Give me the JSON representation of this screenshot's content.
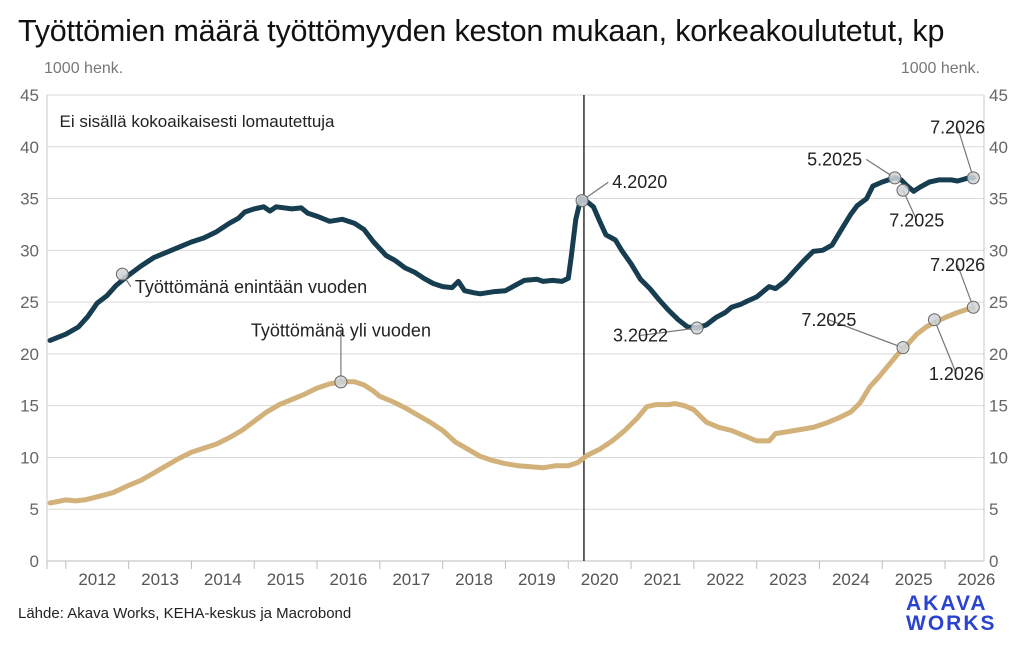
{
  "title": "Työttömien määrä työttömyyden keston mukaan, korkeakoulutetut, kp",
  "unit_left": "1000 henk.",
  "unit_right": "1000 henk.",
  "source": "Lähde: Akava Works, KEHA-keskus ja Macrobond",
  "logo": {
    "line1": "AKAVA",
    "line2": "WORKS",
    "color": "#2a44d0"
  },
  "chart_data": {
    "type": "line",
    "ylim": [
      0,
      45
    ],
    "yticks": [
      0,
      5,
      10,
      15,
      20,
      25,
      30,
      35,
      40,
      45
    ],
    "xlim": [
      2011.7,
      2026.62
    ],
    "year_labels": [
      "2012",
      "2013",
      "2014",
      "2015",
      "2016",
      "2017",
      "2018",
      "2019",
      "2020",
      "2021",
      "2022",
      "2023",
      "2024",
      "2025",
      "2026"
    ],
    "grid": true,
    "vertical_marker": 2020.25,
    "note": "Ei sisällä kokoaikaisesti lomautettuja",
    "series": [
      {
        "name": "Työttömänä enintään vuoden",
        "color": "#173d50",
        "points": [
          [
            2011.75,
            21.3
          ],
          [
            2012.0,
            21.9
          ],
          [
            2012.2,
            22.6
          ],
          [
            2012.35,
            23.6
          ],
          [
            2012.5,
            24.9
          ],
          [
            2012.65,
            25.6
          ],
          [
            2012.8,
            26.6
          ],
          [
            2013.0,
            27.6
          ],
          [
            2013.2,
            28.5
          ],
          [
            2013.4,
            29.3
          ],
          [
            2013.6,
            29.8
          ],
          [
            2013.8,
            30.3
          ],
          [
            2014.0,
            30.8
          ],
          [
            2014.2,
            31.2
          ],
          [
            2014.4,
            31.8
          ],
          [
            2014.6,
            32.6
          ],
          [
            2014.75,
            33.1
          ],
          [
            2014.85,
            33.7
          ],
          [
            2015.0,
            34.0
          ],
          [
            2015.15,
            34.2
          ],
          [
            2015.25,
            33.8
          ],
          [
            2015.35,
            34.2
          ],
          [
            2015.6,
            34.0
          ],
          [
            2015.75,
            34.1
          ],
          [
            2015.85,
            33.6
          ],
          [
            2016.0,
            33.3
          ],
          [
            2016.2,
            32.8
          ],
          [
            2016.4,
            33.0
          ],
          [
            2016.6,
            32.6
          ],
          [
            2016.75,
            32.0
          ],
          [
            2016.9,
            30.8
          ],
          [
            2017.1,
            29.5
          ],
          [
            2017.25,
            29.0
          ],
          [
            2017.4,
            28.3
          ],
          [
            2017.55,
            27.9
          ],
          [
            2017.7,
            27.3
          ],
          [
            2017.85,
            26.8
          ],
          [
            2018.0,
            26.5
          ],
          [
            2018.15,
            26.4
          ],
          [
            2018.25,
            27.0
          ],
          [
            2018.35,
            26.1
          ],
          [
            2018.5,
            25.9
          ],
          [
            2018.6,
            25.8
          ],
          [
            2018.8,
            26.0
          ],
          [
            2019.0,
            26.1
          ],
          [
            2019.15,
            26.6
          ],
          [
            2019.3,
            27.1
          ],
          [
            2019.5,
            27.2
          ],
          [
            2019.6,
            27.0
          ],
          [
            2019.75,
            27.1
          ],
          [
            2019.9,
            27.0
          ],
          [
            2020.0,
            27.3
          ],
          [
            2020.05,
            29.5
          ],
          [
            2020.12,
            33.0
          ],
          [
            2020.2,
            35.0
          ],
          [
            2020.3,
            34.7
          ],
          [
            2020.4,
            34.2
          ],
          [
            2020.5,
            32.8
          ],
          [
            2020.6,
            31.5
          ],
          [
            2020.75,
            31.0
          ],
          [
            2020.85,
            30.0
          ],
          [
            2021.0,
            28.7
          ],
          [
            2021.15,
            27.2
          ],
          [
            2021.3,
            26.3
          ],
          [
            2021.45,
            25.2
          ],
          [
            2021.6,
            24.2
          ],
          [
            2021.75,
            23.3
          ],
          [
            2021.9,
            22.6
          ],
          [
            2022.05,
            22.5
          ],
          [
            2022.2,
            22.8
          ],
          [
            2022.35,
            23.5
          ],
          [
            2022.5,
            24.0
          ],
          [
            2022.6,
            24.5
          ],
          [
            2022.75,
            24.8
          ],
          [
            2022.85,
            25.1
          ],
          [
            2023.0,
            25.5
          ],
          [
            2023.1,
            26.0
          ],
          [
            2023.2,
            26.5
          ],
          [
            2023.3,
            26.3
          ],
          [
            2023.45,
            27.0
          ],
          [
            2023.6,
            28.0
          ],
          [
            2023.75,
            29.0
          ],
          [
            2023.9,
            29.9
          ],
          [
            2024.05,
            30.0
          ],
          [
            2024.2,
            30.5
          ],
          [
            2024.35,
            32.0
          ],
          [
            2024.5,
            33.5
          ],
          [
            2024.6,
            34.3
          ],
          [
            2024.75,
            35.0
          ],
          [
            2024.85,
            36.2
          ],
          [
            2025.0,
            36.6
          ],
          [
            2025.1,
            36.8
          ],
          [
            2025.2,
            37.0
          ],
          [
            2025.3,
            36.8
          ],
          [
            2025.4,
            36.2
          ],
          [
            2025.5,
            35.7
          ],
          [
            2025.6,
            36.1
          ],
          [
            2025.75,
            36.6
          ],
          [
            2025.9,
            36.8
          ],
          [
            2026.1,
            36.8
          ],
          [
            2026.2,
            36.7
          ],
          [
            2026.38,
            37.0
          ],
          [
            2026.45,
            37.0
          ]
        ]
      },
      {
        "name": "Työttömänä yli vuoden",
        "color": "#d2b27a",
        "points": [
          [
            2011.75,
            5.6
          ],
          [
            2012.0,
            5.9
          ],
          [
            2012.15,
            5.8
          ],
          [
            2012.3,
            5.9
          ],
          [
            2012.5,
            6.2
          ],
          [
            2012.75,
            6.6
          ],
          [
            2013.0,
            7.3
          ],
          [
            2013.2,
            7.8
          ],
          [
            2013.4,
            8.5
          ],
          [
            2013.6,
            9.2
          ],
          [
            2013.8,
            9.9
          ],
          [
            2014.0,
            10.5
          ],
          [
            2014.2,
            10.9
          ],
          [
            2014.4,
            11.3
          ],
          [
            2014.6,
            11.9
          ],
          [
            2014.8,
            12.6
          ],
          [
            2015.0,
            13.5
          ],
          [
            2015.2,
            14.4
          ],
          [
            2015.4,
            15.1
          ],
          [
            2015.6,
            15.6
          ],
          [
            2015.8,
            16.1
          ],
          [
            2016.0,
            16.7
          ],
          [
            2016.2,
            17.1
          ],
          [
            2016.4,
            17.3
          ],
          [
            2016.6,
            17.3
          ],
          [
            2016.75,
            17.0
          ],
          [
            2016.9,
            16.4
          ],
          [
            2017.0,
            15.9
          ],
          [
            2017.2,
            15.4
          ],
          [
            2017.4,
            14.8
          ],
          [
            2017.6,
            14.1
          ],
          [
            2017.8,
            13.4
          ],
          [
            2018.0,
            12.6
          ],
          [
            2018.2,
            11.5
          ],
          [
            2018.4,
            10.8
          ],
          [
            2018.6,
            10.1
          ],
          [
            2018.8,
            9.7
          ],
          [
            2019.0,
            9.4
          ],
          [
            2019.2,
            9.2
          ],
          [
            2019.4,
            9.1
          ],
          [
            2019.6,
            9.0
          ],
          [
            2019.8,
            9.2
          ],
          [
            2020.0,
            9.2
          ],
          [
            2020.15,
            9.5
          ],
          [
            2020.3,
            10.2
          ],
          [
            2020.5,
            10.8
          ],
          [
            2020.7,
            11.6
          ],
          [
            2020.9,
            12.6
          ],
          [
            2021.1,
            13.8
          ],
          [
            2021.25,
            14.9
          ],
          [
            2021.4,
            15.1
          ],
          [
            2021.6,
            15.1
          ],
          [
            2021.7,
            15.2
          ],
          [
            2021.85,
            15.0
          ],
          [
            2022.0,
            14.6
          ],
          [
            2022.1,
            14.0
          ],
          [
            2022.2,
            13.4
          ],
          [
            2022.4,
            12.9
          ],
          [
            2022.6,
            12.6
          ],
          [
            2022.8,
            12.1
          ],
          [
            2023.0,
            11.6
          ],
          [
            2023.2,
            11.6
          ],
          [
            2023.3,
            12.3
          ],
          [
            2023.5,
            12.5
          ],
          [
            2023.7,
            12.7
          ],
          [
            2023.9,
            12.9
          ],
          [
            2024.1,
            13.3
          ],
          [
            2024.3,
            13.8
          ],
          [
            2024.5,
            14.4
          ],
          [
            2024.65,
            15.3
          ],
          [
            2024.8,
            16.8
          ],
          [
            2024.95,
            17.8
          ],
          [
            2025.1,
            18.9
          ],
          [
            2025.25,
            20.0
          ],
          [
            2025.4,
            20.9
          ],
          [
            2025.55,
            21.9
          ],
          [
            2025.7,
            22.6
          ],
          [
            2025.85,
            23.1
          ],
          [
            2026.0,
            23.5
          ],
          [
            2026.2,
            24.0
          ],
          [
            2026.35,
            24.3
          ],
          [
            2026.45,
            24.4
          ]
        ]
      }
    ],
    "annotations": [
      {
        "text": "Työttömänä enintään vuoden",
        "at": [
          2012.9,
          27.7
        ],
        "label": [
          2013.1,
          25.9
        ],
        "anchor": "start",
        "marker": true
      },
      {
        "text": "Työttömänä yli vuoden",
        "at": [
          2016.38,
          17.3
        ],
        "label": [
          2016.38,
          21.7
        ],
        "anchor": "middle",
        "marker": true
      },
      {
        "text": "4.2020",
        "at": [
          2020.22,
          34.8
        ],
        "label": [
          2020.7,
          36.0
        ],
        "anchor": "start",
        "marker": true
      },
      {
        "text": "3.2022",
        "at": [
          2022.05,
          22.5
        ],
        "label": [
          2021.15,
          21.2
        ],
        "anchor": "middle",
        "marker": true
      },
      {
        "text": "5.2025",
        "at": [
          2025.2,
          37.0
        ],
        "label": [
          2024.68,
          38.2
        ],
        "anchor": "end",
        "marker": true
      },
      {
        "text": "7.2025",
        "at": [
          2025.33,
          35.8
        ],
        "label": [
          2025.55,
          32.3
        ],
        "anchor": "middle",
        "marker": true
      },
      {
        "text": "7.2026",
        "at": [
          2026.45,
          37.0
        ],
        "label": [
          2026.2,
          41.3
        ],
        "anchor": "middle",
        "marker": true
      },
      {
        "text": "7.2025",
        "at": [
          2025.33,
          20.6
        ],
        "label": [
          2024.15,
          22.7
        ],
        "anchor": "middle",
        "marker": true
      },
      {
        "text": "1.2026",
        "at": [
          2025.83,
          23.3
        ],
        "label": [
          2026.18,
          17.5
        ],
        "anchor": "middle",
        "marker": true
      },
      {
        "text": "7.2026",
        "at": [
          2026.45,
          24.5
        ],
        "label": [
          2026.2,
          28.0
        ],
        "anchor": "middle",
        "marker": true
      }
    ]
  }
}
